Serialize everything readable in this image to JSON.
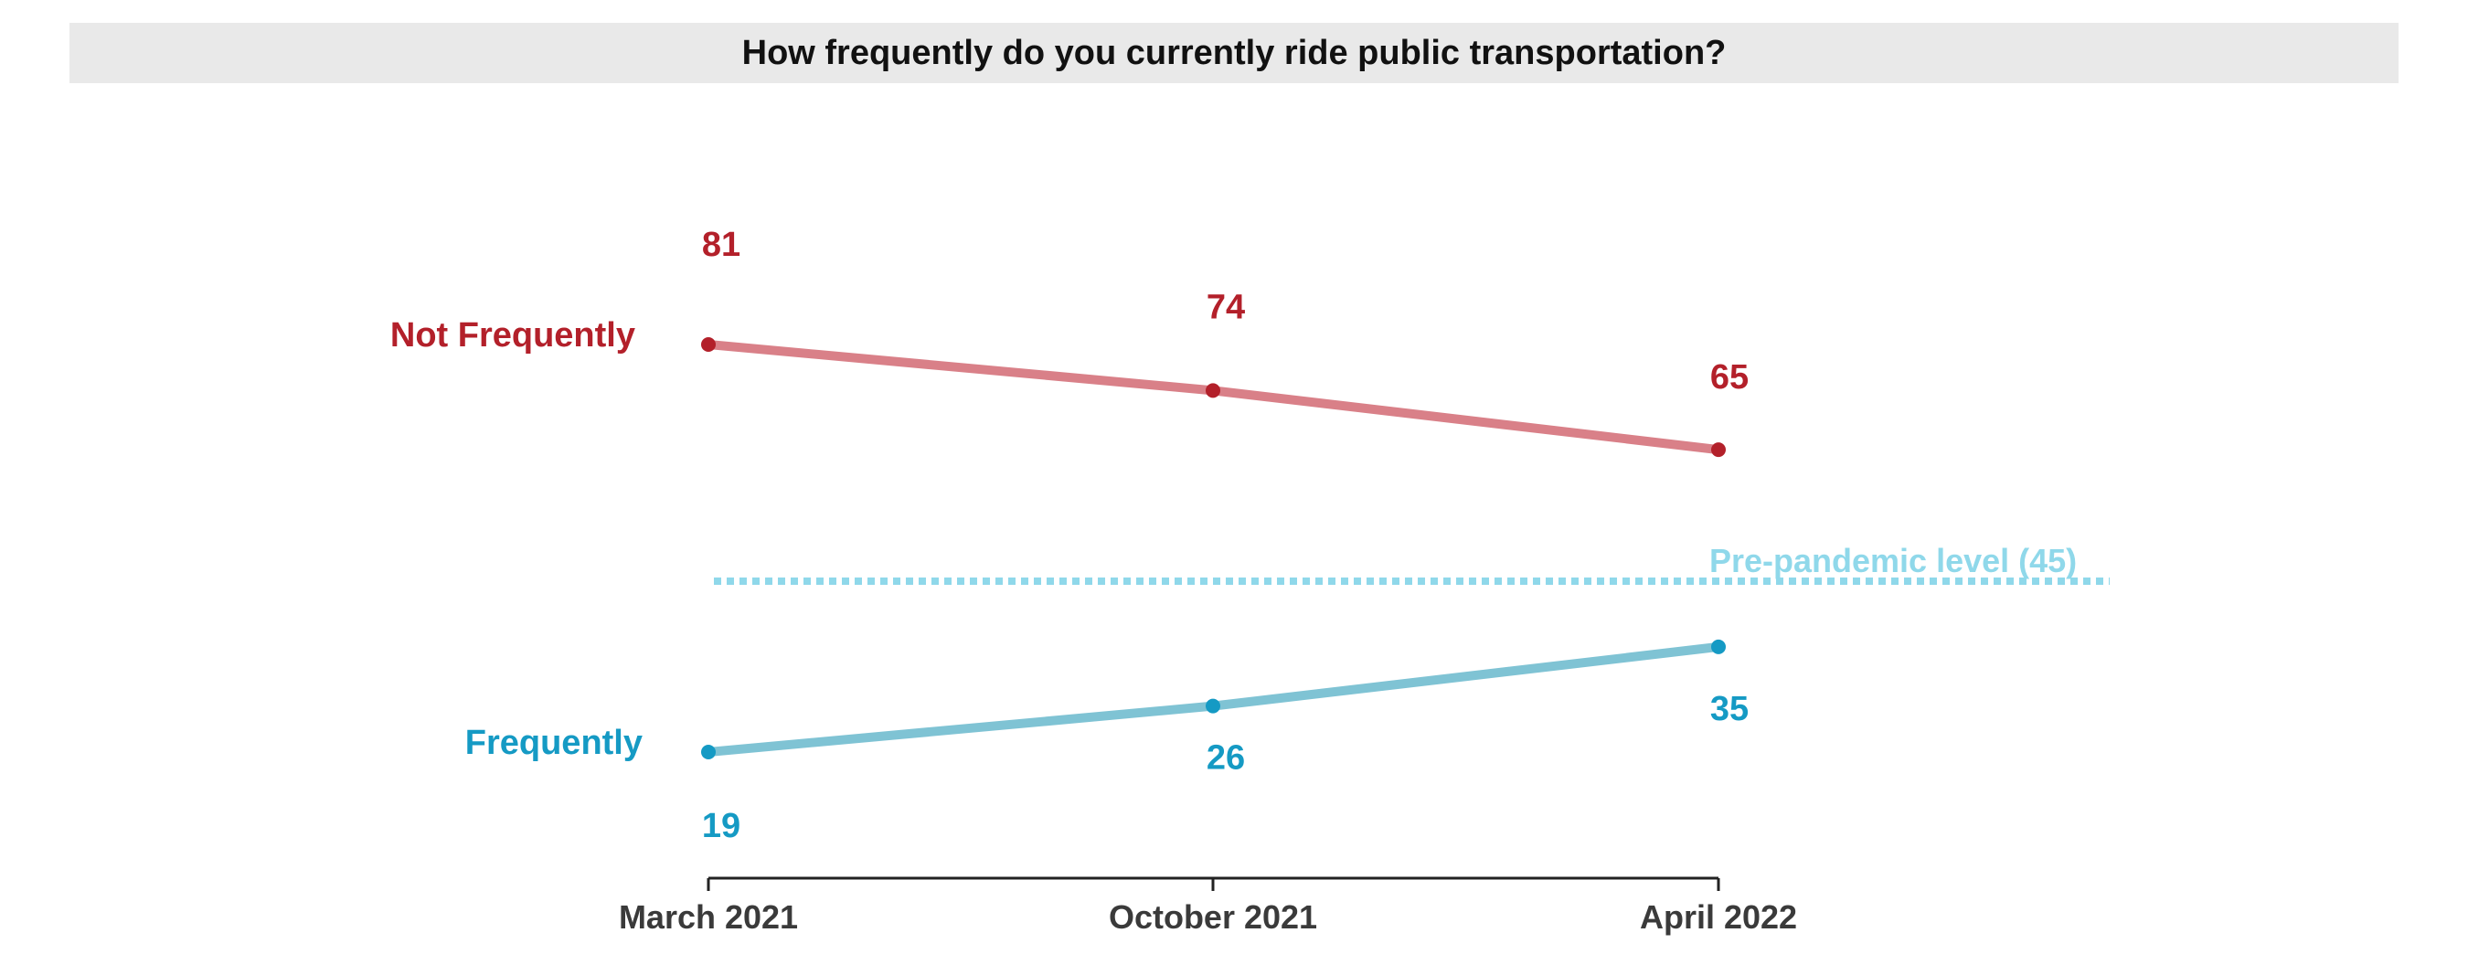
{
  "chart_data": {
    "type": "line",
    "title": "How frequently do you currently ride public transportation?",
    "categories": [
      "March 2021",
      "October 2021",
      "April 2022"
    ],
    "series": [
      {
        "name": "Not Frequently",
        "values": [
          81,
          74,
          65
        ],
        "line_color": "#d98088",
        "label_color": "#b3202a"
      },
      {
        "name": "Frequently",
        "values": [
          19,
          26,
          35
        ],
        "line_color": "#7fc3d4",
        "label_color": "#159ac4"
      }
    ],
    "reference_line": {
      "label": "Pre-pandemic level (45)",
      "value": 45,
      "color": "#8fd8ea"
    },
    "xlabel": "",
    "ylabel": "",
    "ylim": [
      15,
      85
    ],
    "grid": false
  }
}
